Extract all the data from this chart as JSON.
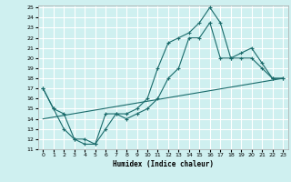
{
  "xlabel": "Humidex (Indice chaleur)",
  "ylabel": "",
  "xlim": [
    -0.5,
    23.5
  ],
  "ylim": [
    11,
    25.2
  ],
  "yticks": [
    11,
    12,
    13,
    14,
    15,
    16,
    17,
    18,
    19,
    20,
    21,
    22,
    23,
    24,
    25
  ],
  "xticks": [
    0,
    1,
    2,
    3,
    4,
    5,
    6,
    7,
    8,
    9,
    10,
    11,
    12,
    13,
    14,
    15,
    16,
    17,
    18,
    19,
    20,
    21,
    22,
    23
  ],
  "bg_color": "#cff0f0",
  "line_color": "#1a6b6b",
  "grid_color": "#ffffff",
  "line1_x": [
    0,
    1,
    2,
    3,
    4,
    5,
    6,
    7,
    8,
    9,
    10,
    11,
    12,
    13,
    14,
    15,
    16,
    17,
    18,
    19,
    20,
    21,
    22,
    23
  ],
  "line1_y": [
    17,
    15,
    13,
    12,
    11.5,
    11.5,
    13,
    14.5,
    14.5,
    15,
    16,
    19,
    21.5,
    22,
    22.5,
    23.5,
    25,
    23.5,
    20,
    20.5,
    21,
    19.5,
    18,
    18
  ],
  "line2_x": [
    0,
    1,
    2,
    3,
    4,
    5,
    6,
    7,
    8,
    9,
    10,
    11,
    12,
    13,
    14,
    15,
    16,
    17,
    18,
    19,
    20,
    21,
    22,
    23
  ],
  "line2_y": [
    17,
    15,
    14.5,
    12,
    12,
    11.5,
    14.5,
    14.5,
    14,
    14.5,
    15,
    16,
    18,
    19,
    22,
    22,
    23.5,
    20,
    20,
    20,
    20,
    19,
    18,
    18
  ],
  "line3_x": [
    0,
    23
  ],
  "line3_y": [
    14,
    18
  ]
}
